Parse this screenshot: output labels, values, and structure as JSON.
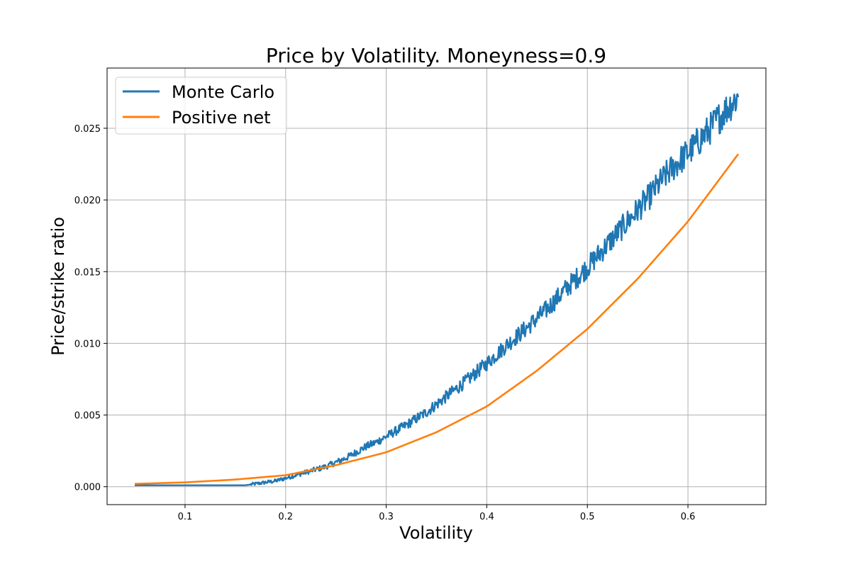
{
  "chart_data": {
    "type": "line",
    "title": "Price by Volatility. Moneyness=0.9",
    "xlabel": "Volatility",
    "ylabel": "Price/strike ratio",
    "xlim": [
      0.0225,
      0.6775
    ],
    "ylim": [
      -0.00125,
      0.0292
    ],
    "xticks": [
      0.1,
      0.2,
      0.3,
      0.4,
      0.5,
      0.6
    ],
    "xtick_labels": [
      "0.1",
      "0.2",
      "0.3",
      "0.4",
      "0.5",
      "0.6"
    ],
    "yticks": [
      0.0,
      0.005,
      0.01,
      0.015,
      0.02,
      0.025
    ],
    "ytick_labels": [
      "0.000",
      "0.005",
      "0.010",
      "0.015",
      "0.020",
      "0.025"
    ],
    "grid": true,
    "legend_position": "top-left",
    "series": [
      {
        "name": "Monte Carlo",
        "color": "#1f77b4",
        "noisy": true,
        "x": [
          0.05,
          0.1,
          0.15,
          0.16,
          0.17,
          0.18,
          0.19,
          0.2,
          0.21,
          0.22,
          0.23,
          0.24,
          0.25,
          0.26,
          0.27,
          0.28,
          0.29,
          0.3,
          0.32,
          0.34,
          0.36,
          0.38,
          0.4,
          0.42,
          0.44,
          0.46,
          0.48,
          0.5,
          0.52,
          0.54,
          0.56,
          0.58,
          0.6,
          0.62,
          0.64,
          0.65
        ],
        "y": [
          0.0001,
          0.0001,
          0.0001,
          0.0001,
          0.0002,
          0.0003,
          0.0004,
          0.0006,
          0.0008,
          0.001,
          0.0012,
          0.0014,
          0.0017,
          0.002,
          0.0024,
          0.0028,
          0.0031,
          0.0035,
          0.0043,
          0.0052,
          0.0063,
          0.0074,
          0.0086,
          0.0099,
          0.0111,
          0.0124,
          0.0139,
          0.0153,
          0.0169,
          0.0185,
          0.0201,
          0.0219,
          0.0233,
          0.0248,
          0.0265,
          0.0272
        ]
      },
      {
        "name": "Positive net",
        "color": "#ff7f0e",
        "noisy": false,
        "x": [
          0.05,
          0.1,
          0.15,
          0.2,
          0.25,
          0.3,
          0.35,
          0.4,
          0.45,
          0.5,
          0.55,
          0.6,
          0.65
        ],
        "y": [
          0.0002,
          0.0003,
          0.0005,
          0.0008,
          0.0015,
          0.0024,
          0.0038,
          0.0056,
          0.0081,
          0.011,
          0.0145,
          0.0185,
          0.0232
        ]
      }
    ]
  }
}
